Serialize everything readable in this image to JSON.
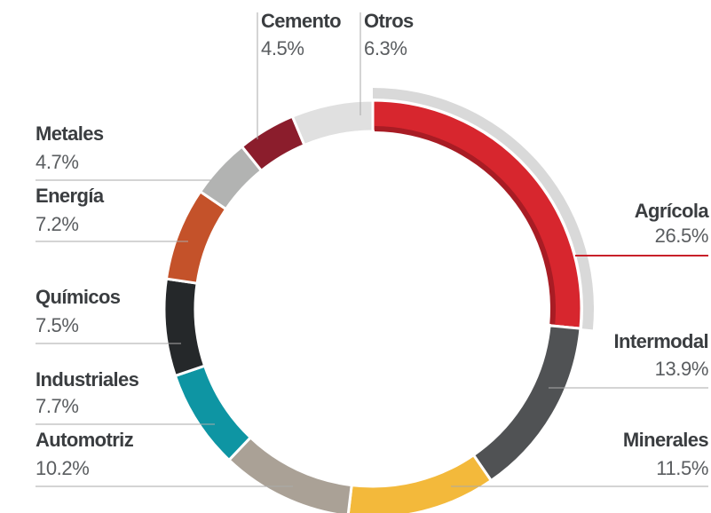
{
  "chart_data": {
    "type": "donut",
    "categories": [
      "Agrícola",
      "Intermodal",
      "Minerales",
      "Automotriz",
      "Industriales",
      "Químicos",
      "Energía",
      "Metales",
      "Cemento",
      "Otros"
    ],
    "values": [
      26.5,
      13.9,
      11.5,
      10.2,
      7.7,
      7.5,
      7.2,
      4.7,
      4.5,
      6.3
    ],
    "value_labels": [
      "26.5%",
      "13.9%",
      "11.5%",
      "10.2%",
      "7.7%",
      "7.5%",
      "7.2%",
      "4.7%",
      "4.5%",
      "6.3%"
    ],
    "colors": [
      "#d7262e",
      "#505254",
      "#f3b93b",
      "#aaa196",
      "#0e95a3",
      "#25282a",
      "#c4522a",
      "#b2b3b2",
      "#8b1d2c",
      "#e0e0e0"
    ]
  }
}
